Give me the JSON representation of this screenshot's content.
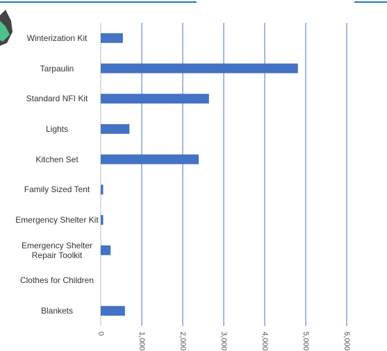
{
  "chart_data": {
    "type": "barh",
    "categories": [
      "Winterization Kit",
      "Tarpaulin",
      "Standard NFI Kit",
      "Lights",
      "Kitchen Set",
      "Family Sized Tent",
      "Emergency Shelter Kit",
      "Emergency Shelter Repair Toolkit",
      "Clothes for Children",
      "Blankets"
    ],
    "values": [
      540,
      4810,
      2640,
      700,
      2390,
      60,
      60,
      240,
      0,
      590
    ],
    "color": "#4472c4",
    "xlim": [
      0,
      6500
    ],
    "xticks": [
      0,
      {
        "value": 1000,
        "label": "1,000"
      },
      {
        "value": 2000,
        "label": "2,000"
      },
      {
        "value": 3000,
        "label": "3,000"
      },
      {
        "value": 4000,
        "label": "4,000"
      },
      {
        "value": 5000,
        "label": "5,000"
      },
      {
        "value": 6000,
        "label": "6,000"
      }
    ],
    "grid": true
  }
}
